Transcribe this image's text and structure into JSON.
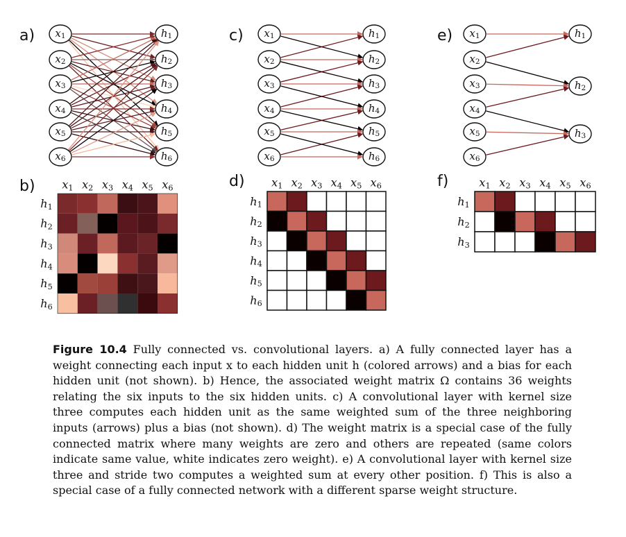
{
  "panels": [
    {
      "label": "a)"
    },
    {
      "label": "b)"
    },
    {
      "label": "c)"
    },
    {
      "label": "d)"
    },
    {
      "label": "e)"
    },
    {
      "label": "f)"
    }
  ],
  "inputs": [
    "x1",
    "x2",
    "x3",
    "x4",
    "x5",
    "x6"
  ],
  "hidden": [
    "h1",
    "h2",
    "h3",
    "h4",
    "h5",
    "h6"
  ],
  "hidden_strided": [
    "h1",
    "h2",
    "h3"
  ],
  "kernel_colors": {
    "w1": "#c8675b",
    "w2": "#6c1a1e",
    "w3": "#0a0000",
    "empty": "#ffffff"
  },
  "matrix_b": [
    [
      "#7a2a2a",
      "#8a3030",
      "#c0685c",
      "#3a0e12",
      "#4a141a",
      "#e0907c"
    ],
    [
      "#6a2024",
      "#84605a",
      "#050000",
      "#5a181e",
      "#4c1418",
      "#7a2a2c"
    ],
    [
      "#d08878",
      "#6a2024",
      "#c0685c",
      "#5a1a20",
      "#6a2428",
      "#050000"
    ],
    [
      "#d88c7c",
      "#050000",
      "#fcd8c0",
      "#8a3030",
      "#5a1c20",
      "#e09a88"
    ],
    [
      "#050000",
      "#a04a40",
      "#9a4038",
      "#3e1014",
      "#4a181c",
      "#f8b89c"
    ],
    [
      "#f8c0a0",
      "#6a2024",
      "#6c5050",
      "#303030",
      "#3a0a0e",
      "#8a3030"
    ]
  ],
  "matrix_d": [
    [
      "w1",
      "w2",
      "",
      "",
      "",
      ""
    ],
    [
      "w3",
      "w1",
      "w2",
      "",
      "",
      ""
    ],
    [
      "",
      "w3",
      "w1",
      "w2",
      "",
      ""
    ],
    [
      "",
      "",
      "w3",
      "w1",
      "w2",
      ""
    ],
    [
      "",
      "",
      "",
      "w3",
      "w1",
      "w2"
    ],
    [
      "",
      "",
      "",
      "",
      "w3",
      "w1"
    ]
  ],
  "matrix_f": [
    [
      "w1",
      "w2",
      "",
      "",
      "",
      ""
    ],
    [
      "",
      "w3",
      "w1",
      "w2",
      "",
      ""
    ],
    [
      "",
      "",
      "",
      "w3",
      "w1",
      "w2"
    ]
  ],
  "caption": {
    "label": "Figure 10.4",
    "text": " Fully connected vs. convolutional layers. a) A fully connected layer has a weight connecting each input x to each hidden unit h (colored arrows) and a bias for each hidden unit (not shown). b) Hence, the associated weight matrix Ω contains 36 weights relating the six inputs to the six hidden units. c) A convolutional layer with kernel size three computes each hidden unit as the same weighted sum of the three neighboring inputs (arrows) plus a bias (not shown). d) The weight matrix is a special case of the fully connected matrix where many weights are zero and others are repeated (same colors indicate same value, white indicates zero weight). e) A convolutional layer with kernel size three and stride two computes a weighted sum at every other position. f) This is also a special case of a fully connected network with a different sparse weight structure."
  }
}
